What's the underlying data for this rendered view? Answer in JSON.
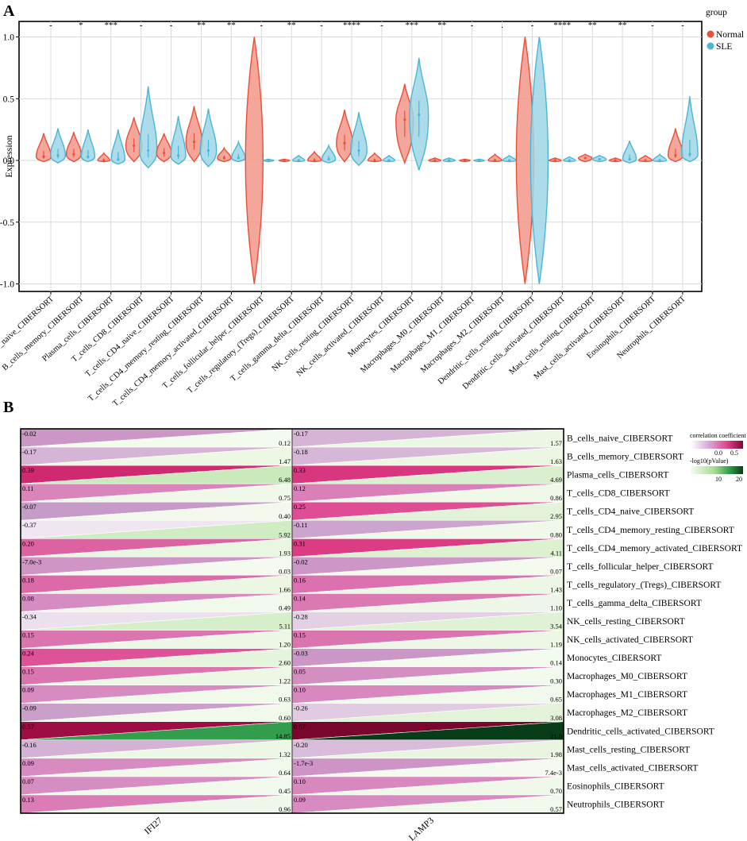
{
  "panelA": {
    "label": "A",
    "chart_data": {
      "type": "violin",
      "ylabel": "Expression",
      "ylim": [
        -1.0,
        1.0
      ],
      "yticks": [
        "1.0",
        "0.5",
        "0.0",
        "-0.5",
        "-1.0"
      ],
      "ytick_values": [
        1.0,
        0.5,
        0.0,
        -0.5,
        -1.0
      ],
      "grid": true,
      "legend_title": "group",
      "legend_position": "top-right",
      "series": [
        {
          "name": "Normal",
          "color": "#e8503a"
        },
        {
          "name": "SLE",
          "color": "#4ab6d5"
        }
      ],
      "categories": [
        "B_cells_naive_CIBERSORT",
        "B_cells_memory_CIBERSORT",
        "Plasma_cells_CIBERSORT",
        "T_cells_CD8_CIBERSORT",
        "T_cells_CD4_naive_CIBERSORT",
        "T_cells_CD4_memory_resting_CIBERSORT",
        "T_cells_CD4_memory_activated_CIBERSORT",
        "T_cells_follicular_helper_CIBERSORT",
        "T_cells_regulatory_(Tregs)_CIBERSORT",
        "T_cells_gamma_delta_CIBERSORT",
        "NK_cells_resting_CIBERSORT",
        "NK_cells_activated_CIBERSORT",
        "Monocytes_CIBERSORT",
        "Macrophages_M0_CIBERSORT",
        "Macrophages_M1_CIBERSORT",
        "Macrophages_M2_CIBERSORT",
        "Dendritic_cells_resting_CIBERSORT",
        "Dendritic_cells_activated_CIBERSORT",
        "Mast_cells_resting_CIBERSORT",
        "Mast_cells_activated_CIBERSORT",
        "Eosinophils_CIBERSORT",
        "Neutrophils_CIBERSORT"
      ],
      "significance": [
        "-",
        "*",
        "***",
        "-",
        "-",
        "**",
        "**",
        "-",
        "**",
        "-",
        "****",
        "-",
        "***",
        "**",
        "-",
        ".",
        "-",
        "****",
        "**",
        "**",
        "-",
        "-"
      ],
      "violins": {
        "Normal": [
          {
            "min": -0.01,
            "max": 0.22,
            "med": 0.03,
            "w": 0.55
          },
          {
            "min": -0.01,
            "max": 0.23,
            "med": 0.05,
            "w": 0.55
          },
          {
            "min": -0.01,
            "max": 0.06,
            "med": 0.0,
            "w": 0.45
          },
          {
            "min": -0.01,
            "max": 0.35,
            "med": 0.12,
            "w": 0.6
          },
          {
            "min": -0.01,
            "max": 0.22,
            "med": 0.06,
            "w": 0.55
          },
          {
            "min": -0.01,
            "max": 0.44,
            "med": 0.15,
            "w": 0.6
          },
          {
            "min": -0.01,
            "max": 0.1,
            "med": 0.02,
            "w": 0.5
          },
          {
            "min": -1.0,
            "max": 1.0,
            "med": 0.0,
            "w": 1.0
          },
          {
            "min": -0.01,
            "max": 0.01,
            "med": 0.0,
            "w": 0.4
          },
          {
            "min": -0.01,
            "max": 0.07,
            "med": 0.0,
            "w": 0.5
          },
          {
            "min": -0.01,
            "max": 0.41,
            "med": 0.14,
            "w": 0.6
          },
          {
            "min": -0.01,
            "max": 0.06,
            "med": 0.0,
            "w": 0.5
          },
          {
            "min": -0.02,
            "max": 0.62,
            "med": 0.33,
            "w": 0.65
          },
          {
            "min": -0.01,
            "max": 0.02,
            "med": 0.0,
            "w": 0.45
          },
          {
            "min": -0.01,
            "max": 0.01,
            "med": 0.0,
            "w": 0.4
          },
          {
            "min": -0.01,
            "max": 0.05,
            "med": 0.0,
            "w": 0.5
          },
          {
            "min": -1.0,
            "max": 1.0,
            "med": 0.0,
            "w": 1.0
          },
          {
            "min": -0.01,
            "max": 0.02,
            "med": 0.0,
            "w": 0.45
          },
          {
            "min": -0.01,
            "max": 0.05,
            "med": 0.02,
            "w": 0.5
          },
          {
            "min": -0.01,
            "max": 0.02,
            "med": 0.0,
            "w": 0.45
          },
          {
            "min": -0.01,
            "max": 0.04,
            "med": 0.0,
            "w": 0.5
          },
          {
            "min": -0.01,
            "max": 0.26,
            "med": 0.04,
            "w": 0.55
          }
        ],
        "SLE": [
          {
            "min": -0.02,
            "max": 0.26,
            "med": 0.04,
            "w": 0.55
          },
          {
            "min": -0.01,
            "max": 0.25,
            "med": 0.03,
            "w": 0.5
          },
          {
            "min": -0.03,
            "max": 0.25,
            "med": 0.01,
            "w": 0.5
          },
          {
            "min": -0.06,
            "max": 0.6,
            "med": 0.08,
            "w": 0.65
          },
          {
            "min": -0.03,
            "max": 0.36,
            "med": 0.04,
            "w": 0.55
          },
          {
            "min": -0.05,
            "max": 0.42,
            "med": 0.08,
            "w": 0.6
          },
          {
            "min": -0.01,
            "max": 0.15,
            "med": 0.02,
            "w": 0.5
          },
          {
            "min": -0.01,
            "max": 0.01,
            "med": 0.0,
            "w": 0.4
          },
          {
            "min": -0.01,
            "max": 0.04,
            "med": 0.0,
            "w": 0.45
          },
          {
            "min": -0.02,
            "max": 0.12,
            "med": 0.01,
            "w": 0.5
          },
          {
            "min": -0.04,
            "max": 0.39,
            "med": 0.08,
            "w": 0.6
          },
          {
            "min": -0.01,
            "max": 0.04,
            "med": 0.0,
            "w": 0.45
          },
          {
            "min": -0.08,
            "max": 0.83,
            "med": 0.37,
            "w": 0.7
          },
          {
            "min": -0.01,
            "max": 0.02,
            "med": 0.0,
            "w": 0.45
          },
          {
            "min": -0.01,
            "max": 0.01,
            "med": 0.0,
            "w": 0.4
          },
          {
            "min": -0.01,
            "max": 0.04,
            "med": 0.0,
            "w": 0.5
          },
          {
            "min": -1.0,
            "max": 1.0,
            "med": 0.0,
            "w": 1.0
          },
          {
            "min": -0.01,
            "max": 0.03,
            "med": 0.0,
            "w": 0.45
          },
          {
            "min": -0.01,
            "max": 0.04,
            "med": 0.01,
            "w": 0.5
          },
          {
            "min": -0.02,
            "max": 0.16,
            "med": 0.01,
            "w": 0.5
          },
          {
            "min": -0.01,
            "max": 0.05,
            "med": 0.0,
            "w": 0.5
          },
          {
            "min": -0.01,
            "max": 0.52,
            "med": 0.05,
            "w": 0.6
          }
        ]
      }
    }
  },
  "panelB": {
    "label": "B",
    "chart_data": {
      "type": "heatmap",
      "columns": [
        "IFI27",
        "LAMP3"
      ],
      "rows": [
        "B_cells_naive_CIBERSORT",
        "B_cells_memory_CIBERSORT",
        "Plasma_cells_CIBERSORT",
        "T_cells_CD8_CIBERSORT",
        "T_cells_CD4_naive_CIBERSORT",
        "T_cells_CD4_memory_resting_CIBERSORT",
        "T_cells_CD4_memory_activated_CIBERSORT",
        "T_cells_follicular_helper_CIBERSORT",
        "T_cells_regulatory_(Tregs)_CIBERSORT",
        "T_cells_gamma_delta_CIBERSORT",
        "NK_cells_resting_CIBERSORT",
        "NK_cells_activated_CIBERSORT",
        "Monocytes_CIBERSORT",
        "Macrophages_M0_CIBERSORT",
        "Macrophages_M1_CIBERSORT",
        "Macrophages_M2_CIBERSORT",
        "Dendritic_cells_activated_CIBERSORT",
        "Mast_cells_resting_CIBERSORT",
        "Mast_cells_activated_CIBERSORT",
        "Eosinophils_CIBERSORT",
        "Neutrophils_CIBERSORT"
      ],
      "correlation": {
        "IFI27": [
          -0.02,
          -0.17,
          0.39,
          0.11,
          -0.07,
          -0.37,
          0.2,
          -0.007,
          0.18,
          0.08,
          -0.34,
          0.15,
          0.24,
          0.15,
          0.09,
          -0.09,
          0.57,
          -0.16,
          0.09,
          0.07,
          0.13
        ],
        "LAMP3": [
          -0.17,
          -0.18,
          0.33,
          0.12,
          0.25,
          -0.11,
          0.31,
          -0.02,
          0.16,
          0.14,
          -0.28,
          0.15,
          -0.03,
          0.05,
          0.1,
          -0.26,
          0.67,
          -0.2,
          -0.0017,
          0.1,
          0.09
        ]
      },
      "correlation_labels": {
        "IFI27": [
          "-0.02",
          "-0.17",
          "0.39",
          "0.11",
          "-0.07",
          "-0.37",
          "0.20",
          "-7.0e-3",
          "0.18",
          "0.08",
          "-0.34",
          "0.15",
          "0.24",
          "0.15",
          "0.09",
          "-0.09",
          "0.57",
          "-0.16",
          "0.09",
          "0.07",
          "0.13"
        ],
        "LAMP3": [
          "-0.17",
          "-0.18",
          "0.33",
          "0.12",
          "0.25",
          "-0.11",
          "0.31",
          "-0.02",
          "0.16",
          "0.14",
          "-0.28",
          "0.15",
          "-0.03",
          "0.05",
          "0.10",
          "-0.26",
          "0.67",
          "-0.20",
          "-1.7e-3",
          "0.10",
          "0.09"
        ]
      },
      "neglog10p": {
        "IFI27": [
          0.12,
          1.47,
          6.48,
          0.75,
          0.4,
          5.92,
          1.93,
          0.03,
          1.66,
          0.49,
          5.11,
          1.2,
          2.6,
          1.22,
          0.63,
          0.6,
          14.85,
          1.32,
          0.64,
          0.45,
          0.96
        ],
        "LAMP3": [
          1.57,
          1.63,
          4.69,
          0.86,
          2.95,
          0.8,
          4.11,
          0.07,
          1.43,
          1.1,
          3.54,
          1.19,
          0.14,
          0.3,
          0.65,
          3.08,
          21.0,
          1.98,
          0.0074,
          0.7,
          0.57
        ]
      },
      "p_labels": {
        "IFI27": [
          "0.12",
          "1.47",
          "6.48",
          "0.75",
          "0.40",
          "5.92",
          "1.93",
          "0.03",
          "1.66",
          "0.49",
          "5.11",
          "1.20",
          "2.60",
          "1.22",
          "0.63",
          "0.60",
          "14.85",
          "1.32",
          "0.64",
          "0.45",
          "0.96"
        ],
        "LAMP3": [
          "1.57",
          "1.63",
          "4.69",
          "0.86",
          "2.95",
          "0.80",
          "4.11",
          "0.07",
          "1.43",
          "1.10",
          "3.54",
          "1.19",
          "0.14",
          "0.30",
          "0.65",
          "3.08",
          "21.0",
          "1.98",
          "7.4e-3",
          "0.70",
          "0.57"
        ]
      },
      "legend": {
        "corr_title": "correlation coefficient",
        "corr_ticks": [
          "0.0",
          "0.5"
        ],
        "p_title": "-log10(pValue)",
        "p_ticks": [
          "10",
          "20"
        ]
      }
    }
  }
}
